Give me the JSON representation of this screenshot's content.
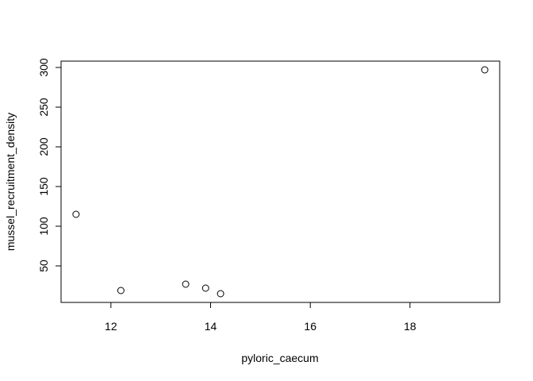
{
  "chart_data": {
    "type": "scatter",
    "title": "",
    "xlabel": "pyloric_caecum",
    "ylabel": "mussel_recruitment_density",
    "xlim": [
      11.0,
      19.8
    ],
    "ylim": [
      4,
      308
    ],
    "xticks": [
      12,
      14,
      16,
      18
    ],
    "yticks": [
      50,
      100,
      150,
      200,
      250,
      300
    ],
    "grid": false,
    "legend": "none",
    "points": [
      {
        "x": 11.3,
        "y": 115
      },
      {
        "x": 12.2,
        "y": 19
      },
      {
        "x": 13.5,
        "y": 27
      },
      {
        "x": 13.9,
        "y": 22
      },
      {
        "x": 14.2,
        "y": 15
      },
      {
        "x": 19.5,
        "y": 297
      }
    ]
  }
}
